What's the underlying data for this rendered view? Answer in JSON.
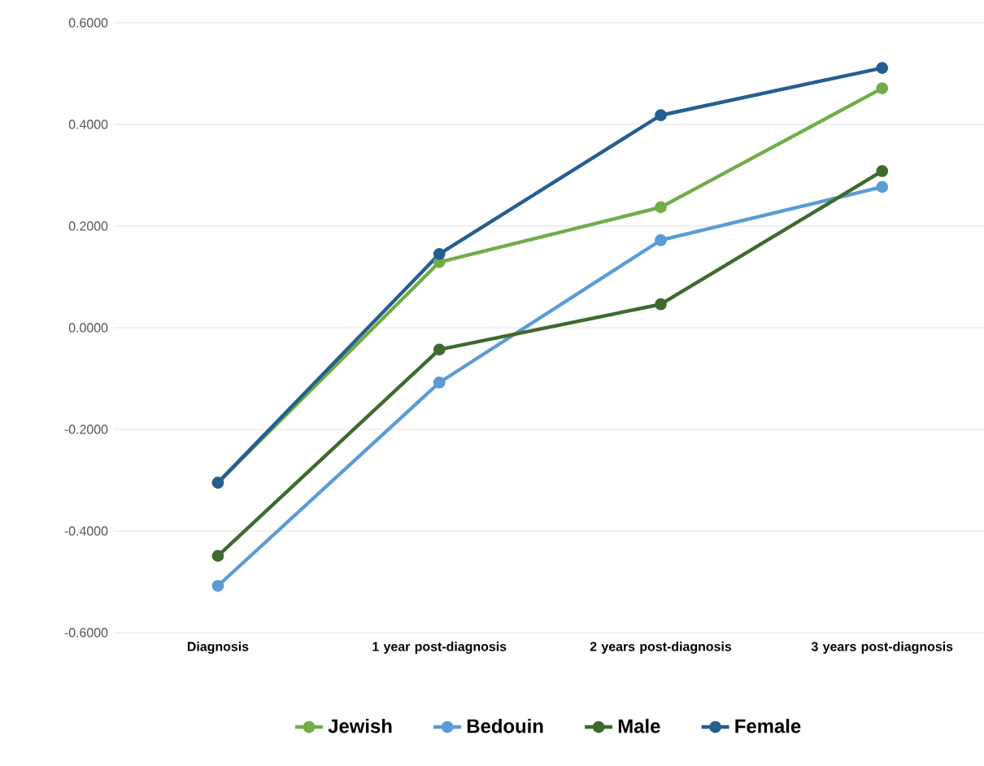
{
  "chart_data": {
    "type": "line",
    "categories": [
      "Diagnosis",
      "1 year post-diagnosis",
      "2 years post-diagnosis",
      "3 years post-diagnosis"
    ],
    "series": [
      {
        "name": "Jewish",
        "color": "#70ad47",
        "values": [
          -0.305,
          0.129,
          0.237,
          0.471
        ]
      },
      {
        "name": "Bedouin",
        "color": "#5b9bd5",
        "values": [
          -0.508,
          -0.108,
          0.172,
          0.277
        ]
      },
      {
        "name": "Male",
        "color": "#3f6a2e",
        "values": [
          -0.449,
          -0.043,
          0.046,
          0.308
        ]
      },
      {
        "name": "Female",
        "color": "#255e91",
        "values": [
          -0.305,
          0.145,
          0.418,
          0.511
        ]
      }
    ],
    "ylim": [
      -0.6,
      0.6
    ],
    "yticks": [
      {
        "value": -0.6,
        "label": "-0.6000"
      },
      {
        "value": -0.4,
        "label": "-0.4000"
      },
      {
        "value": -0.2,
        "label": "-0.2000"
      },
      {
        "value": 0,
        "label": "0.0000"
      },
      {
        "value": 0.2,
        "label": "0.2000"
      },
      {
        "value": 0.4,
        "label": "0.4000"
      },
      {
        "value": 0.6,
        "label": "0.6000"
      }
    ],
    "grid": "y",
    "legend": "bottom",
    "marker": "circle",
    "line_style": "solid"
  }
}
